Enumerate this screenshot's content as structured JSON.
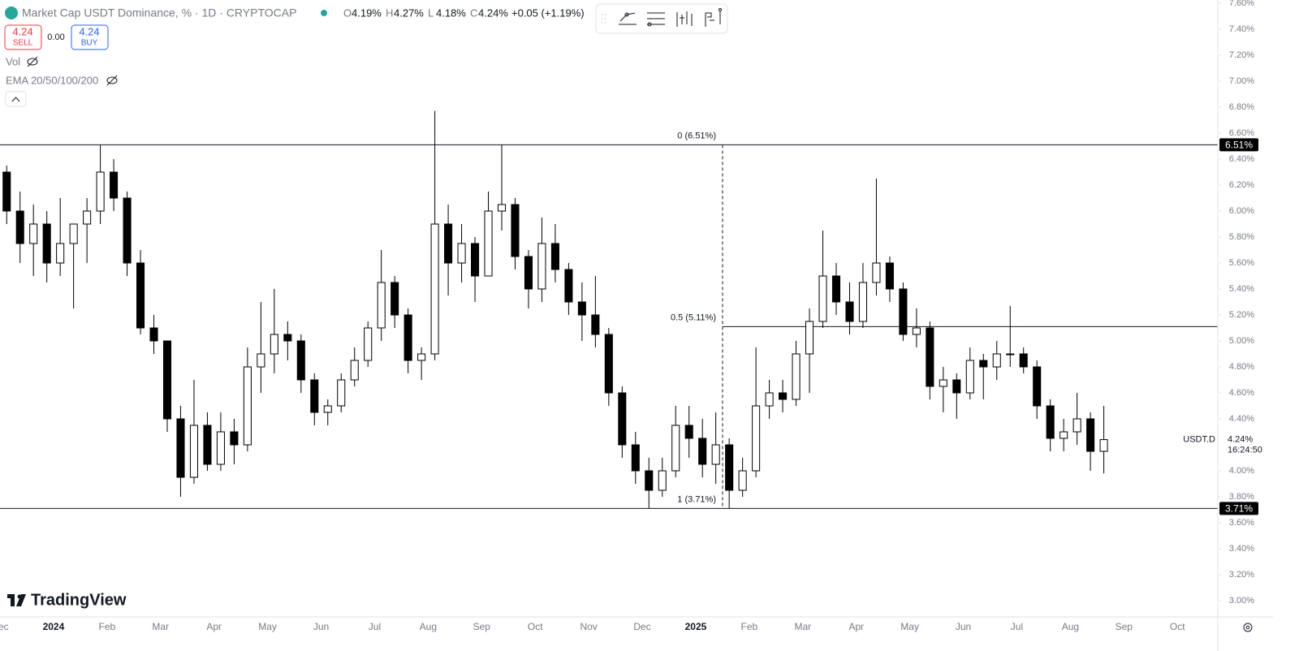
{
  "header": {
    "title": "Market Cap USDT Dominance, % · 1D · CRYPTOCAP",
    "ohlc": [
      {
        "key": "O",
        "value": "4.19%"
      },
      {
        "key": "H",
        "value": "4.27%"
      },
      {
        "key": "L",
        "value": "4.18%"
      },
      {
        "key": "C",
        "value": "4.24%"
      }
    ],
    "change": "+0.05 (+1.19%)",
    "sell_price": "4.24",
    "sell_label": "SELL",
    "spread": "0.00",
    "buy_price": "4.24",
    "buy_label": "BUY",
    "indicators": [
      "Vol",
      "EMA 20/50/100/200"
    ],
    "logo": "TradingView"
  },
  "chart_data": {
    "type": "candlestick",
    "up_color": "#ffffff",
    "down_color": "#000000",
    "wick_color": "#000000",
    "categories": [
      "Dec",
      null,
      null,
      null,
      "2024",
      null,
      null,
      null,
      "Feb",
      null,
      null,
      null,
      "Mar",
      null,
      null,
      null,
      "Apr",
      null,
      null,
      null,
      "May",
      null,
      null,
      null,
      "Jun",
      null,
      null,
      null,
      "Jul",
      null,
      null,
      null,
      "Aug",
      null,
      null,
      null,
      "Sep",
      null,
      null,
      null,
      "Oct",
      null,
      null,
      null,
      "Nov",
      null,
      null,
      null,
      "Dec",
      null,
      null,
      null,
      "2025",
      null,
      null,
      null,
      "Feb",
      null,
      null,
      null,
      "Mar",
      null,
      null,
      null,
      "Apr",
      null,
      null,
      null,
      "May",
      null,
      null,
      null,
      "Jun",
      null,
      null,
      null,
      "Jul",
      null,
      null,
      null,
      "Aug",
      null,
      null,
      null,
      "Sep",
      null,
      null,
      null,
      "Oct"
    ],
    "open": [
      6.3,
      6.0,
      5.75,
      5.9,
      5.6,
      5.75,
      5.9,
      6.0,
      6.3,
      6.1,
      5.6,
      5.1,
      5.0,
      4.4,
      3.95,
      4.35,
      4.05,
      4.3,
      4.2,
      4.8,
      4.9,
      5.05,
      5.0,
      4.7,
      4.45,
      4.5,
      4.7,
      4.85,
      5.1,
      5.45,
      5.2,
      4.85,
      4.9,
      5.9,
      5.6,
      5.75,
      5.5,
      6.0,
      6.05,
      5.65,
      5.4,
      5.75,
      5.55,
      5.3,
      5.2,
      5.05,
      4.6,
      4.2,
      4.0,
      3.85,
      4.0,
      4.35,
      4.25,
      4.05,
      4.2,
      3.85,
      4.0,
      4.5,
      4.6,
      4.55,
      4.9,
      5.15,
      5.5,
      5.3,
      5.15,
      5.45,
      5.6,
      5.4,
      5.05,
      5.1,
      4.65,
      4.7,
      4.6,
      4.85,
      4.8,
      4.9,
      4.9,
      4.8,
      4.5,
      4.25,
      4.3,
      4.4,
      4.15,
      null,
      null,
      null,
      null,
      null,
      null
    ],
    "high": [
      6.35,
      6.15,
      6.05,
      6.0,
      6.1,
      5.9,
      6.1,
      6.51,
      6.4,
      6.15,
      5.7,
      5.2,
      5.0,
      4.5,
      4.7,
      4.45,
      4.45,
      4.4,
      4.95,
      5.3,
      5.4,
      5.15,
      5.05,
      4.75,
      4.55,
      4.75,
      4.95,
      5.15,
      5.7,
      5.5,
      5.25,
      4.95,
      6.77,
      6.05,
      5.9,
      5.8,
      6.15,
      6.51,
      6.1,
      5.7,
      5.95,
      5.9,
      5.6,
      5.45,
      5.5,
      5.1,
      4.65,
      4.3,
      4.1,
      4.1,
      4.5,
      4.5,
      4.4,
      4.45,
      4.25,
      4.1,
      4.95,
      4.7,
      4.7,
      5.0,
      5.25,
      5.85,
      5.6,
      5.45,
      5.6,
      6.25,
      5.65,
      5.45,
      5.25,
      5.15,
      4.8,
      4.75,
      4.95,
      4.9,
      5.0,
      5.27,
      4.95,
      4.85,
      4.55,
      4.4,
      4.6,
      4.45,
      4.5,
      null,
      null,
      null,
      null,
      null,
      null
    ],
    "low": [
      5.9,
      5.6,
      5.5,
      5.45,
      5.5,
      5.25,
      5.6,
      5.9,
      6.0,
      5.5,
      5.05,
      4.9,
      4.3,
      3.8,
      3.9,
      4.0,
      4.0,
      4.05,
      4.15,
      4.6,
      4.75,
      4.85,
      4.6,
      4.35,
      4.35,
      4.45,
      4.65,
      4.8,
      5.0,
      5.1,
      4.75,
      4.7,
      4.85,
      5.35,
      5.45,
      5.3,
      5.5,
      5.85,
      5.55,
      5.25,
      5.3,
      5.45,
      5.2,
      5.0,
      4.95,
      4.5,
      4.1,
      3.9,
      3.71,
      3.8,
      3.95,
      4.1,
      3.95,
      3.9,
      3.71,
      3.8,
      3.95,
      4.4,
      4.45,
      4.5,
      4.6,
      5.1,
      5.2,
      5.05,
      5.1,
      5.35,
      5.3,
      5.0,
      4.95,
      4.55,
      4.45,
      4.4,
      4.55,
      4.55,
      4.7,
      4.8,
      4.75,
      4.4,
      4.15,
      4.15,
      4.2,
      4.0,
      3.98,
      null,
      null,
      null,
      null,
      null,
      null
    ],
    "close": [
      6.0,
      5.75,
      5.9,
      5.6,
      5.75,
      5.9,
      6.0,
      6.3,
      6.1,
      5.6,
      5.1,
      5.0,
      4.4,
      3.95,
      4.35,
      4.05,
      4.3,
      4.2,
      4.8,
      4.9,
      5.05,
      5.0,
      4.7,
      4.45,
      4.5,
      4.7,
      4.85,
      5.1,
      5.45,
      5.2,
      4.85,
      4.9,
      5.9,
      5.6,
      5.75,
      5.5,
      6.0,
      6.05,
      5.65,
      5.4,
      5.75,
      5.55,
      5.3,
      5.2,
      5.05,
      4.6,
      4.2,
      4.0,
      3.85,
      4.0,
      4.35,
      4.25,
      4.05,
      4.2,
      3.85,
      4.0,
      4.5,
      4.6,
      4.55,
      4.9,
      5.15,
      5.5,
      5.3,
      5.15,
      5.45,
      5.6,
      5.4,
      5.05,
      5.1,
      4.65,
      4.7,
      4.6,
      4.85,
      4.8,
      4.9,
      4.9,
      4.8,
      4.5,
      4.25,
      4.3,
      4.4,
      4.15,
      4.24,
      null,
      null,
      null,
      null,
      null,
      null
    ],
    "ylim": [
      2.875,
      7.625
    ],
    "yticks": [
      {
        "value": 3.0,
        "label": "3.00%"
      },
      {
        "value": 3.2,
        "label": "3.20%"
      },
      {
        "value": 3.4,
        "label": "3.40%"
      },
      {
        "value": 3.6,
        "label": "3.60%"
      },
      {
        "value": 3.8,
        "label": "3.80%"
      },
      {
        "value": 4.0,
        "label": "4.00%"
      },
      {
        "value": 4.4,
        "label": "4.40%"
      },
      {
        "value": 4.6,
        "label": "4.60%"
      },
      {
        "value": 4.8,
        "label": "4.80%"
      },
      {
        "value": 5.0,
        "label": "5.00%"
      },
      {
        "value": 5.2,
        "label": "5.20%"
      },
      {
        "value": 5.4,
        "label": "5.40%"
      },
      {
        "value": 5.6,
        "label": "5.60%"
      },
      {
        "value": 5.8,
        "label": "5.80%"
      },
      {
        "value": 6.0,
        "label": "6.00%"
      },
      {
        "value": 6.2,
        "label": "6.20%"
      },
      {
        "value": 6.4,
        "label": "6.40%"
      },
      {
        "value": 6.6,
        "label": "6.60%"
      },
      {
        "value": 6.8,
        "label": "6.80%"
      },
      {
        "value": 7.0,
        "label": "7.00%"
      },
      {
        "value": 7.2,
        "label": "7.20%"
      },
      {
        "value": 7.4,
        "label": "7.40%"
      },
      {
        "value": 7.6,
        "label": "7.60%"
      }
    ],
    "fib": [
      {
        "value": 6.51,
        "label": "0 (6.51%)"
      },
      {
        "value": 5.11,
        "label": "0.5 (5.11%)"
      },
      {
        "value": 3.71,
        "label": "1 (3.71%)"
      }
    ],
    "price_badges": [
      {
        "value": 6.51,
        "label": "6.51%"
      },
      {
        "value": 3.71,
        "label": "3.71%"
      }
    ],
    "last": {
      "symbol": "USDT.D",
      "value": 4.24,
      "label": "4.24%",
      "countdown": "16:24:50"
    }
  }
}
